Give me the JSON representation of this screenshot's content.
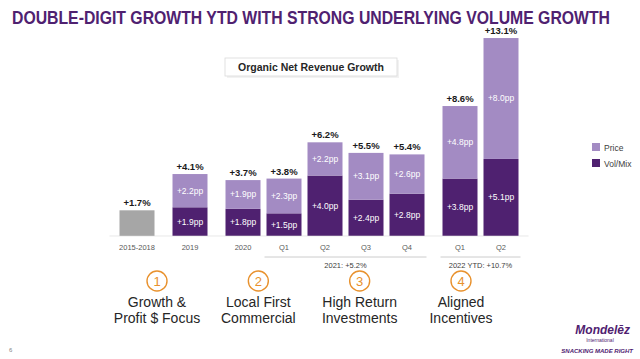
{
  "chart_data": {
    "type": "bar",
    "stacked": true,
    "title": "DOUBLE-DIGIT GROWTH YTD WITH STRONG UNDERLYING VOLUME GROWTH",
    "subtitle": "Organic Net Revenue Growth",
    "categories": [
      "2015-2018",
      "2019",
      "2020",
      "Q1",
      "Q2",
      "Q3",
      "Q4",
      "Q1",
      "Q2"
    ],
    "series": [
      {
        "name": "Vol/Mix",
        "color": "#4f2170",
        "colors": [
          "#a6a6a6",
          "#4f2170",
          "#4f2170",
          "#4f2170",
          "#4f2170",
          "#4f2170",
          "#4f2170",
          "#4f2170",
          "#4f2170"
        ],
        "values": [
          1.7,
          1.9,
          1.8,
          1.5,
          4.0,
          2.4,
          2.8,
          3.8,
          5.1
        ],
        "value_labels": [
          null,
          "+1.9pp",
          "+1.8pp",
          "+1.5pp",
          "+4.0pp",
          "+2.4pp",
          "+2.8pp",
          "+3.8pp",
          "+5.1pp"
        ]
      },
      {
        "name": "Price",
        "color": "#a38bc3",
        "values": [
          null,
          2.2,
          1.9,
          2.3,
          2.2,
          3.1,
          2.6,
          4.8,
          8.0
        ],
        "value_labels": [
          null,
          "+2.2pp",
          "+1.9pp",
          "+2.3pp",
          "+2.2pp",
          "+3.1pp",
          "+2.6pp",
          "+4.8pp",
          "+8.0pp"
        ]
      }
    ],
    "totals": [
      1.7,
      4.1,
      3.7,
      3.8,
      6.2,
      5.5,
      5.4,
      8.6,
      13.1
    ],
    "total_labels": [
      "+1.7%",
      "+4.1%",
      "+3.7%",
      "+3.8%",
      "+6.2%",
      "+5.5%",
      "+5.4%",
      "+8.6%",
      "+13.1%"
    ],
    "category_groups": [
      {
        "label": "2021: +5.2%",
        "from": 3,
        "to": 6
      },
      {
        "label": "2022 YTD: +10.7%",
        "from": 7,
        "to": 8
      }
    ],
    "ylim": [
      0,
      13.5
    ],
    "tick_labels": "x",
    "data_labels": true,
    "legend": "right",
    "grid": false
  },
  "pillars": [
    {
      "number": 1,
      "lines": [
        "Growth &",
        "Profit $ Focus"
      ]
    },
    {
      "number": 2,
      "lines": [
        "Local First",
        "Commercial"
      ]
    },
    {
      "number": 3,
      "lines": [
        "High Return",
        "Investments"
      ]
    },
    {
      "number": 4,
      "lines": [
        "Aligned",
        "Incentives"
      ]
    }
  ],
  "logo": {
    "name": "Mondelēz",
    "sub": "International",
    "tagline": "SNACKING MADE RIGHT"
  },
  "page_number": "6"
}
